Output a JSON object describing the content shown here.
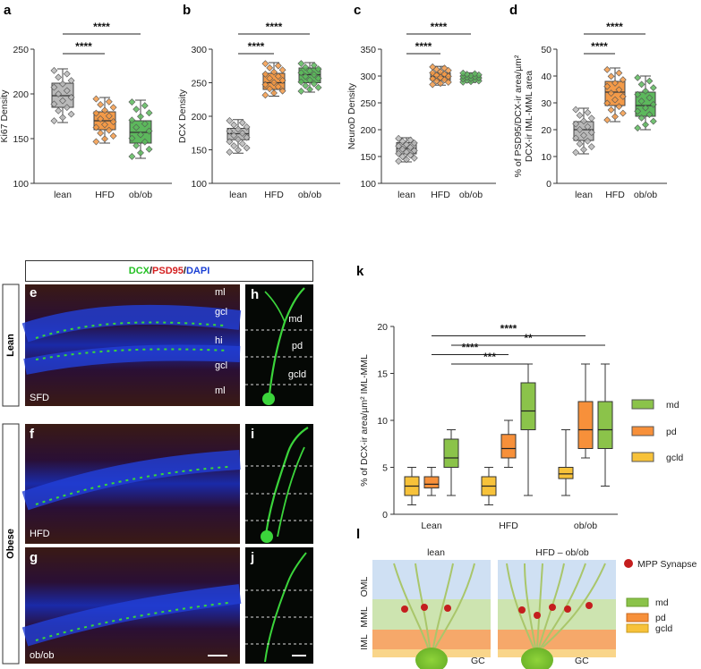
{
  "panels": {
    "a": "a",
    "b": "b",
    "c": "c",
    "d": "d",
    "e": "e",
    "f": "f",
    "g": "g",
    "h": "h",
    "i": "i",
    "j": "j",
    "k": "k",
    "l": "l"
  },
  "stain_legend": {
    "dcx": "DCX",
    "psd95": "PSD95",
    "dapi": "DAPI",
    "sep": "/"
  },
  "side_labels": {
    "lean": "Lean",
    "obese": "Obese"
  },
  "image_labels": {
    "e_tag": "SFD",
    "f_tag": "HFD",
    "g_tag": "ob/ob",
    "layers": [
      "ml",
      "gcl",
      "hi",
      "gcl",
      "ml"
    ],
    "dendrite_layers": [
      "md",
      "pd",
      "gcld"
    ]
  },
  "sig": {
    "four": "****",
    "three": "***",
    "two": "**"
  },
  "schematic": {
    "left_title": "lean",
    "right_title": "HFD – ob/ob",
    "layers": [
      "OML",
      "MML",
      "IML"
    ],
    "cell_label": "GC",
    "synapse_label": "MPP Synapse",
    "legend": [
      "md",
      "pd",
      "gcld"
    ]
  },
  "colors": {
    "lean": "#b9b9b9",
    "hfd": "#f39a48",
    "obob": "#5cb85c",
    "md": "#8bc34a",
    "pd": "#f7903a",
    "gcld": "#f7c23a",
    "synapse": "#c41e1e"
  },
  "chart_data": [
    {
      "type": "box",
      "id": "a",
      "ylabel": "Ki67 Density",
      "categories": [
        "lean",
        "HFD",
        "ob/ob"
      ],
      "ylim": [
        100,
        250
      ],
      "yticks": [
        100,
        150,
        200,
        250
      ],
      "boxes": [
        {
          "min": 168,
          "q1": 185,
          "median": 198,
          "q3": 212,
          "max": 228
        },
        {
          "min": 145,
          "q1": 160,
          "median": 170,
          "q3": 180,
          "max": 196
        },
        {
          "min": 128,
          "q1": 145,
          "median": 157,
          "q3": 170,
          "max": 193
        }
      ],
      "significance": [
        {
          "from": 0,
          "to": 1,
          "label": "****"
        },
        {
          "from": 0,
          "to": 2,
          "label": "****"
        }
      ]
    },
    {
      "type": "box",
      "id": "b",
      "ylabel": "DCX Density",
      "categories": [
        "lean",
        "HFD",
        "ob/ob"
      ],
      "ylim": [
        100,
        300
      ],
      "yticks": [
        100,
        150,
        200,
        250,
        300
      ],
      "boxes": [
        {
          "min": 145,
          "q1": 165,
          "median": 174,
          "q3": 182,
          "max": 195
        },
        {
          "min": 230,
          "q1": 240,
          "median": 250,
          "q3": 264,
          "max": 280
        },
        {
          "min": 236,
          "q1": 250,
          "median": 262,
          "q3": 272,
          "max": 280
        }
      ],
      "significance": [
        {
          "from": 0,
          "to": 1,
          "label": "****"
        },
        {
          "from": 0,
          "to": 2,
          "label": "****"
        }
      ]
    },
    {
      "type": "box",
      "id": "c",
      "ylabel": "NeuroD Density",
      "categories": [
        "lean",
        "HFD",
        "ob/ob"
      ],
      "ylim": [
        100,
        350
      ],
      "yticks": [
        100,
        150,
        200,
        250,
        300,
        350
      ],
      "boxes": [
        {
          "min": 140,
          "q1": 155,
          "median": 165,
          "q3": 176,
          "max": 185
        },
        {
          "min": 283,
          "q1": 292,
          "median": 299,
          "q3": 306,
          "max": 318
        },
        {
          "min": 288,
          "q1": 292,
          "median": 297,
          "q3": 301,
          "max": 306
        }
      ],
      "significance": [
        {
          "from": 0,
          "to": 1,
          "label": "****"
        },
        {
          "from": 0,
          "to": 2,
          "label": "****"
        }
      ]
    },
    {
      "type": "box",
      "id": "d",
      "ylabel_lines": [
        "% of PSD95/DCX-ir area/µm²",
        "DCX-ir  IML-MML area"
      ],
      "categories": [
        "lean",
        "HFD",
        "ob/ob"
      ],
      "ylim": [
        0,
        50
      ],
      "yticks": [
        0,
        10,
        20,
        30,
        40,
        50
      ],
      "boxes": [
        {
          "min": 11,
          "q1": 16,
          "median": 20,
          "q3": 23,
          "max": 28
        },
        {
          "min": 23,
          "q1": 29,
          "median": 34,
          "q3": 38,
          "max": 43
        },
        {
          "min": 20,
          "q1": 25,
          "median": 29,
          "q3": 34,
          "max": 40
        }
      ],
      "significance": [
        {
          "from": 0,
          "to": 1,
          "label": "****"
        },
        {
          "from": 0,
          "to": 2,
          "label": "****"
        }
      ]
    },
    {
      "type": "box",
      "id": "k",
      "ylabel": "% of DCX-ir area/µm² IML-MML",
      "categories": [
        "Lean",
        "HFD",
        "ob/ob"
      ],
      "series": [
        "gcld",
        "pd",
        "md"
      ],
      "ylim": [
        0,
        20
      ],
      "yticks": [
        0,
        5,
        10,
        15,
        20
      ],
      "boxes": [
        [
          {
            "min": 1,
            "q1": 2,
            "median": 3,
            "q3": 4,
            "max": 5
          },
          {
            "min": 2,
            "q1": 2.8,
            "median": 3.2,
            "q3": 4,
            "max": 5
          },
          {
            "min": 2,
            "q1": 5,
            "median": 6,
            "q3": 8,
            "max": 9
          }
        ],
        [
          {
            "min": 1,
            "q1": 2,
            "median": 3,
            "q3": 4,
            "max": 5
          },
          {
            "min": 5,
            "q1": 6,
            "median": 7,
            "q3": 8.5,
            "max": 10
          },
          {
            "min": 2,
            "q1": 9,
            "median": 11,
            "q3": 14,
            "max": 16
          }
        ],
        [
          {
            "min": 2,
            "q1": 3.8,
            "median": 4.3,
            "q3": 5,
            "max": 9
          },
          {
            "min": 6,
            "q1": 7,
            "median": 9,
            "q3": 12,
            "max": 16
          },
          {
            "min": 3,
            "q1": 7,
            "median": 9,
            "q3": 12,
            "max": 16
          }
        ]
      ],
      "legend": [
        "md",
        "pd",
        "gcld"
      ],
      "significance": [
        {
          "label": "****",
          "level": 19
        },
        {
          "label": "**",
          "level": 18
        },
        {
          "label": "****",
          "level": 17
        },
        {
          "label": "***",
          "level": 16
        }
      ]
    }
  ]
}
